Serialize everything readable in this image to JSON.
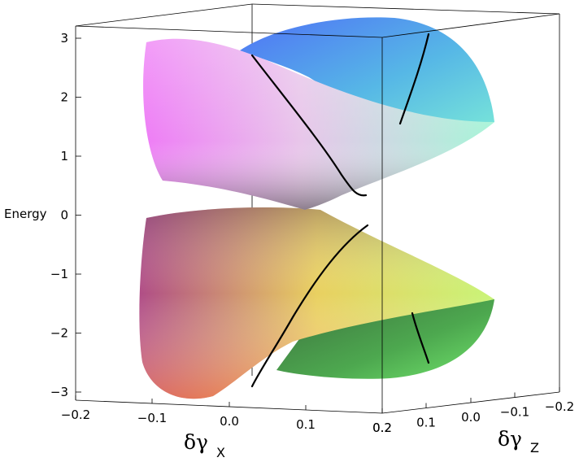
{
  "chart_data": {
    "type": "surface3d",
    "title": "",
    "zlabel": "Energy",
    "xlabel": {
      "main": "δγ",
      "sub": "X"
    },
    "ylabel": {
      "main": "δγ",
      "sub": "Z"
    },
    "x_ticks": [
      "−0.2",
      "−0.1",
      "0.0",
      "0.1",
      "0.2"
    ],
    "y_ticks": [
      "0.2",
      "0.1",
      "0.0",
      "−0.1",
      "−0.2"
    ],
    "z_ticks": [
      "3",
      "2",
      "1",
      "0",
      "−1",
      "−2",
      "−3"
    ],
    "xlim": [
      -0.2,
      0.2
    ],
    "ylim": [
      -0.2,
      0.2
    ],
    "zlim": [
      -3.2,
      3.2
    ],
    "surfaces": [
      {
        "name": "upper band",
        "z_range": [
          0,
          3.1
        ],
        "colors": [
          "#f084f4",
          "#5b7ff3",
          "#8ff0d6",
          "#9a9a9a"
        ]
      },
      {
        "name": "lower band",
        "z_range": [
          -3.1,
          0
        ],
        "colors": [
          "#f08054",
          "#f7f27a",
          "#6fdc6a",
          "#b0508e"
        ]
      }
    ],
    "curves": [
      {
        "on": "upper band",
        "points": [
          [
            0.0,
            0.2,
            2.7
          ],
          [
            0.05,
            0.1,
            1.2
          ],
          [
            0.1,
            0.0,
            0.3
          ]
        ]
      },
      {
        "on": "upper band",
        "points": [
          [
            0.2,
            -0.05,
            3.0
          ],
          [
            0.2,
            -0.1,
            1.5
          ]
        ]
      },
      {
        "on": "lower band",
        "points": [
          [
            0.1,
            0.0,
            -0.2
          ],
          [
            0.05,
            0.1,
            -1.5
          ],
          [
            0.0,
            0.2,
            -2.9
          ]
        ]
      },
      {
        "on": "lower band",
        "points": [
          [
            0.2,
            -0.05,
            -1.7
          ],
          [
            0.2,
            -0.1,
            -2.6
          ]
        ]
      }
    ],
    "box": true,
    "grid": false
  }
}
